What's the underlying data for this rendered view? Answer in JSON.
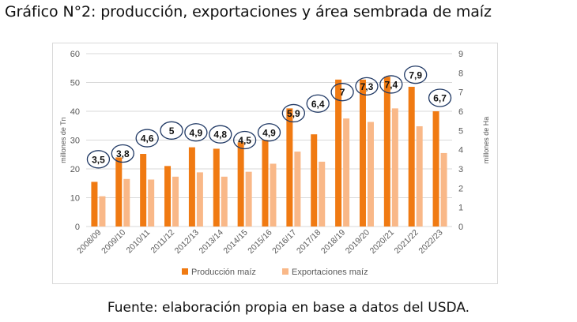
{
  "title": "Gráfico N°2: producción, exportaciones y área sembrada de maíz",
  "source": "Fuente: elaboración propia en base a datos del USDA.",
  "colors": {
    "produccion": "#f07a12",
    "exportaciones": "#f9b888",
    "ellipse": "#1f3864",
    "grid": "#d9d9d9",
    "axis_text": "#595959"
  },
  "chart_data": {
    "type": "bar",
    "categories": [
      "2008/09",
      "2009/10",
      "2010/11",
      "2011/12",
      "2012/13",
      "2013/14",
      "2014/15",
      "2015/16",
      "2016/17",
      "2017/18",
      "2018/19",
      "2019/20",
      "2020/21",
      "2021/22",
      "2022/23"
    ],
    "series": [
      {
        "name": "Producción maíz",
        "axis": "left",
        "values": [
          15.5,
          24,
          25.2,
          21,
          27.5,
          27,
          29.2,
          30,
          41,
          32,
          51,
          51,
          52,
          48.5,
          40
        ]
      },
      {
        "name": "Exportaciones maíz",
        "axis": "left",
        "values": [
          10.5,
          16.5,
          16.3,
          17.3,
          18.8,
          17.3,
          19,
          21.8,
          26,
          22.5,
          37.5,
          36.3,
          41,
          34.8,
          25.5
        ]
      }
    ],
    "area_sembrada": {
      "axis": "right",
      "values": [
        3.5,
        3.8,
        4.6,
        5,
        4.9,
        4.8,
        4.5,
        4.9,
        5.9,
        6.4,
        7,
        7.3,
        7.4,
        7.9,
        6.7
      ],
      "labels": [
        "3,5",
        "3,8",
        "4,6",
        "5",
        "4,9",
        "4,8",
        "4,5",
        "4,9",
        "5,9",
        "6,4",
        "7",
        "7,3",
        "7,4",
        "7,9",
        "6,7"
      ]
    },
    "ylabel_left": "millones de Tn",
    "ylabel_right": "millones de Ha",
    "ylim_left": [
      0,
      60
    ],
    "ylim_right": [
      0,
      9
    ],
    "yticks_left": [
      "0",
      "10",
      "20",
      "30",
      "40",
      "50",
      "60"
    ],
    "yticks_right": [
      "0",
      "1",
      "2",
      "3",
      "4",
      "5",
      "6",
      "7",
      "8",
      "9"
    ],
    "grid": true,
    "legend_position": "bottom"
  }
}
